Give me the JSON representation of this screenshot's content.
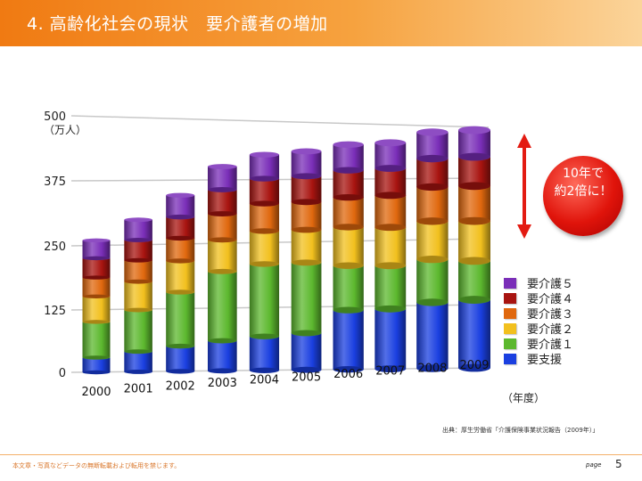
{
  "header": {
    "title": "4. 高齢化社会の現状　要介護者の増加"
  },
  "chart_data": {
    "type": "bar",
    "stacked": true,
    "categories": [
      "2000",
      "2001",
      "2002",
      "2003",
      "2004",
      "2005",
      "2006",
      "2007",
      "2008",
      "2009"
    ],
    "series": [
      {
        "name": "要支援",
        "color": "#1a3fe0",
        "values": [
          29,
          40,
          50,
          60,
          68,
          74,
          120,
          122,
          135,
          140
        ]
      },
      {
        "name": "要介護１",
        "color": "#5cb82e",
        "values": [
          70,
          82,
          107,
          138,
          145,
          142,
          90,
          88,
          88,
          80
        ]
      },
      {
        "name": "要介護２",
        "color": "#f2c01e",
        "values": [
          50,
          56,
          62,
          63,
          66,
          66,
          78,
          78,
          78,
          82
        ]
      },
      {
        "name": "要介護３",
        "color": "#e0680e",
        "values": [
          37,
          42,
          45,
          52,
          55,
          56,
          60,
          65,
          70,
          72
        ]
      },
      {
        "name": "要介護４",
        "color": "#a81410",
        "values": [
          38,
          40,
          42,
          48,
          50,
          52,
          55,
          55,
          58,
          60
        ]
      },
      {
        "name": "要介護５",
        "color": "#7a2eb8",
        "values": [
          35,
          40,
          43,
          46,
          48,
          50,
          52,
          52,
          54,
          55
        ]
      }
    ],
    "yticks": [
      "0",
      "125",
      "250",
      "375",
      "500"
    ],
    "ylim": [
      0,
      500
    ],
    "ylabel": "（万人）",
    "xunit": "（年度）",
    "legend": "right"
  },
  "callout": {
    "text": "10年で\n約2倍に！"
  },
  "source": "出典：厚生労働省「介護保険事業状況報告（2009年）」",
  "footer": {
    "note": "本文章・写真などデータの無断転載および転用を禁じます。",
    "page_label": "page",
    "page_number": "5"
  }
}
